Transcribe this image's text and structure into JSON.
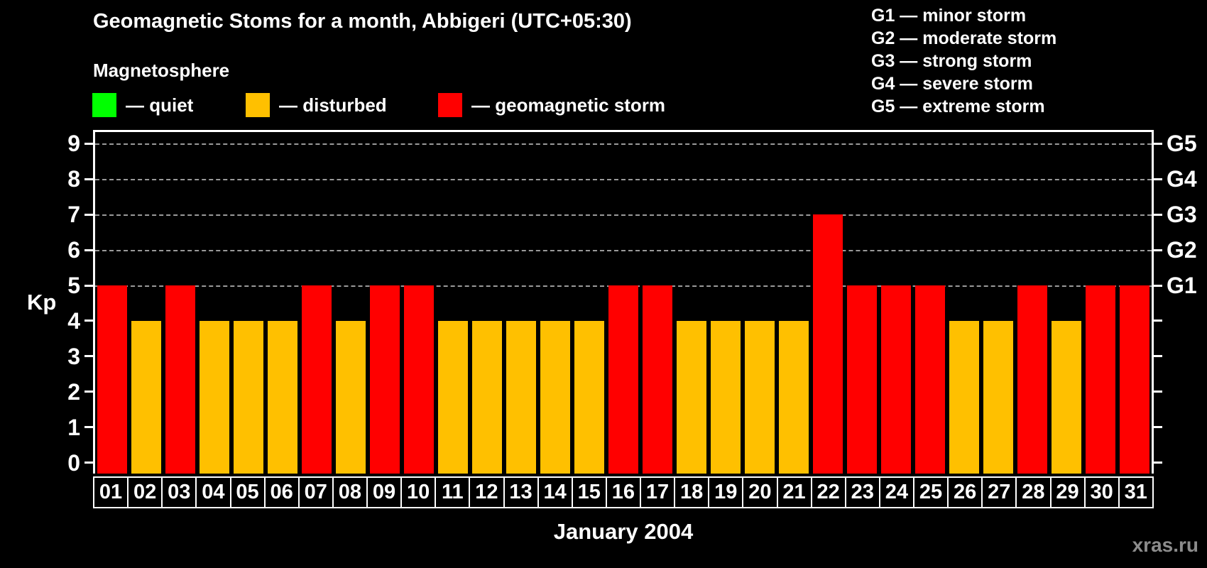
{
  "title": "Geomagnetic Stoms for a month, Abbigeri (UTC+05:30)",
  "legend": {
    "heading": "Magnetosphere",
    "items": [
      {
        "name": "quiet",
        "label": "— quiet",
        "color": "#00ff00"
      },
      {
        "name": "disturbed",
        "label": "— disturbed",
        "color": "#ffc000"
      },
      {
        "name": "geomagnetic-storm",
        "label": "— geomagnetic storm",
        "color": "#ff0000"
      }
    ]
  },
  "storm_scale_legend": [
    "G1 — minor storm",
    "G2 — moderate storm",
    "G3 — strong storm",
    "G4 — severe storm",
    "G5 — extreme storm"
  ],
  "watermark": "xras.ru",
  "colors": {
    "background": "#000000",
    "text": "#ffffff",
    "gridline": "#9a9a9a",
    "axis": "#ffffff",
    "watermark": "#8c8c8c",
    "quiet": "#00ff00",
    "disturbed": "#ffc000",
    "storm": "#ff0000"
  },
  "chart_data": {
    "type": "bar",
    "title": "Geomagnetic Stoms for a month, Abbigeri (UTC+05:30)",
    "xlabel": "January 2004",
    "ylabel": "Kp",
    "ylim": [
      0,
      9
    ],
    "grid": "horizontal dashed lines at Kp 5..9 (G1..G5)",
    "legend_position": "top",
    "categories": [
      "01",
      "02",
      "03",
      "04",
      "05",
      "06",
      "07",
      "08",
      "09",
      "10",
      "11",
      "12",
      "13",
      "14",
      "15",
      "16",
      "17",
      "18",
      "19",
      "20",
      "21",
      "22",
      "23",
      "24",
      "25",
      "26",
      "27",
      "28",
      "29",
      "30",
      "31"
    ],
    "values": [
      5,
      4,
      5,
      4,
      4,
      4,
      5,
      4,
      5,
      5,
      4,
      4,
      4,
      4,
      4,
      5,
      5,
      4,
      4,
      4,
      4,
      7,
      5,
      5,
      5,
      4,
      4,
      5,
      4,
      5,
      5
    ],
    "color_rule": "Kp<=3 quiet(green), Kp=4 disturbed(orange), Kp>=5 storm(red)",
    "y_ticks": [
      0,
      1,
      2,
      3,
      4,
      5,
      6,
      7,
      8,
      9
    ],
    "y_tick_labels": [
      "0",
      "1",
      "2",
      "3",
      "4",
      "5",
      "6",
      "7",
      "8",
      "9"
    ],
    "right_axis_ticks": [
      {
        "kp": 5,
        "label": "G1"
      },
      {
        "kp": 6,
        "label": "G2"
      },
      {
        "kp": 7,
        "label": "G3"
      },
      {
        "kp": 8,
        "label": "G4"
      },
      {
        "kp": 9,
        "label": "G5"
      }
    ]
  }
}
